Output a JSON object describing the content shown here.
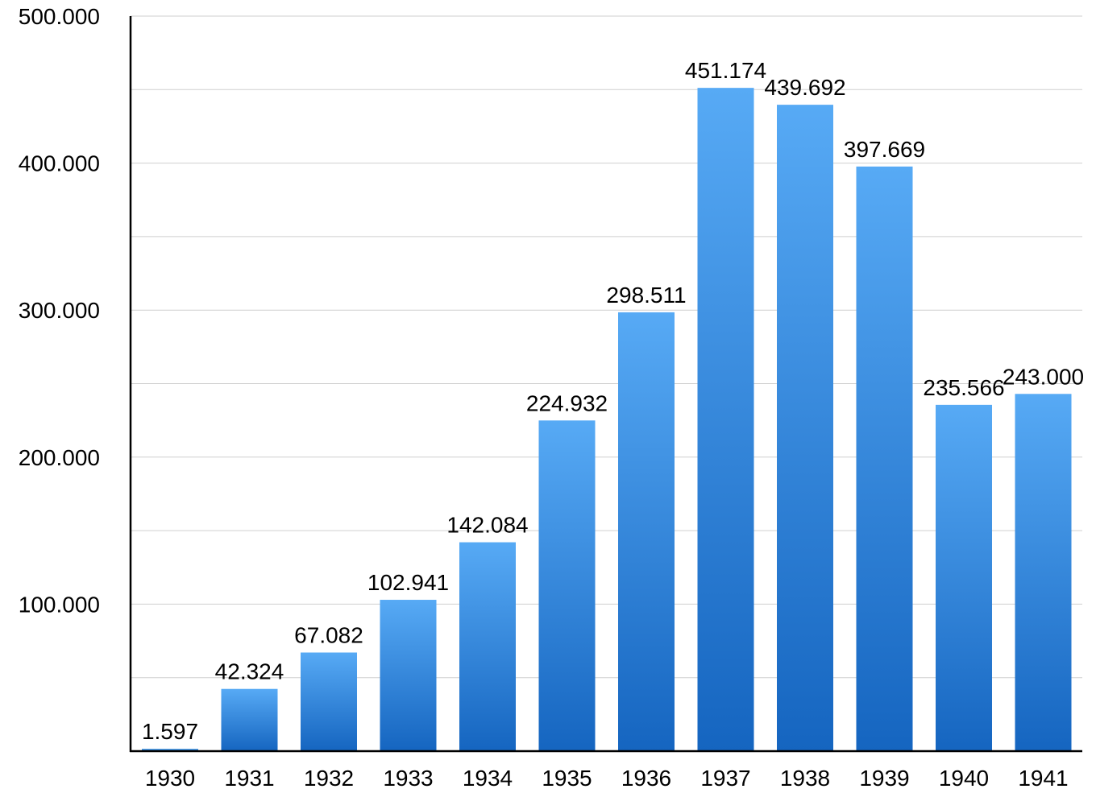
{
  "chart_data": {
    "type": "bar",
    "title": "",
    "xlabel": "",
    "ylabel": "",
    "categories": [
      "1930",
      "1931",
      "1932",
      "1933",
      "1934",
      "1935",
      "1936",
      "1937",
      "1938",
      "1939",
      "1940",
      "1941"
    ],
    "values": [
      1597,
      42324,
      67082,
      102941,
      142084,
      224932,
      298511,
      451174,
      439692,
      397669,
      235566,
      243000
    ],
    "data_labels": [
      "1.597",
      "42.324",
      "67.082",
      "102.941",
      "142.084",
      "224.932",
      "298.511",
      "451.174",
      "439.692",
      "397.669",
      "235.566",
      "243.000"
    ],
    "ylim": [
      0,
      500000
    ],
    "yticks": [
      100000,
      200000,
      300000,
      400000,
      500000
    ],
    "ytick_labels": [
      "100.000",
      "200.000",
      "300.000",
      "400.000",
      "500.000"
    ],
    "minor_gridlines": [
      50000,
      150000,
      250000,
      350000,
      450000
    ],
    "grid": true,
    "legend": "none",
    "colors": {
      "bar_top": "#57aaf5",
      "bar_bottom": "#1565c0",
      "grid": "#cfcfcf",
      "axis": "#000000"
    }
  }
}
